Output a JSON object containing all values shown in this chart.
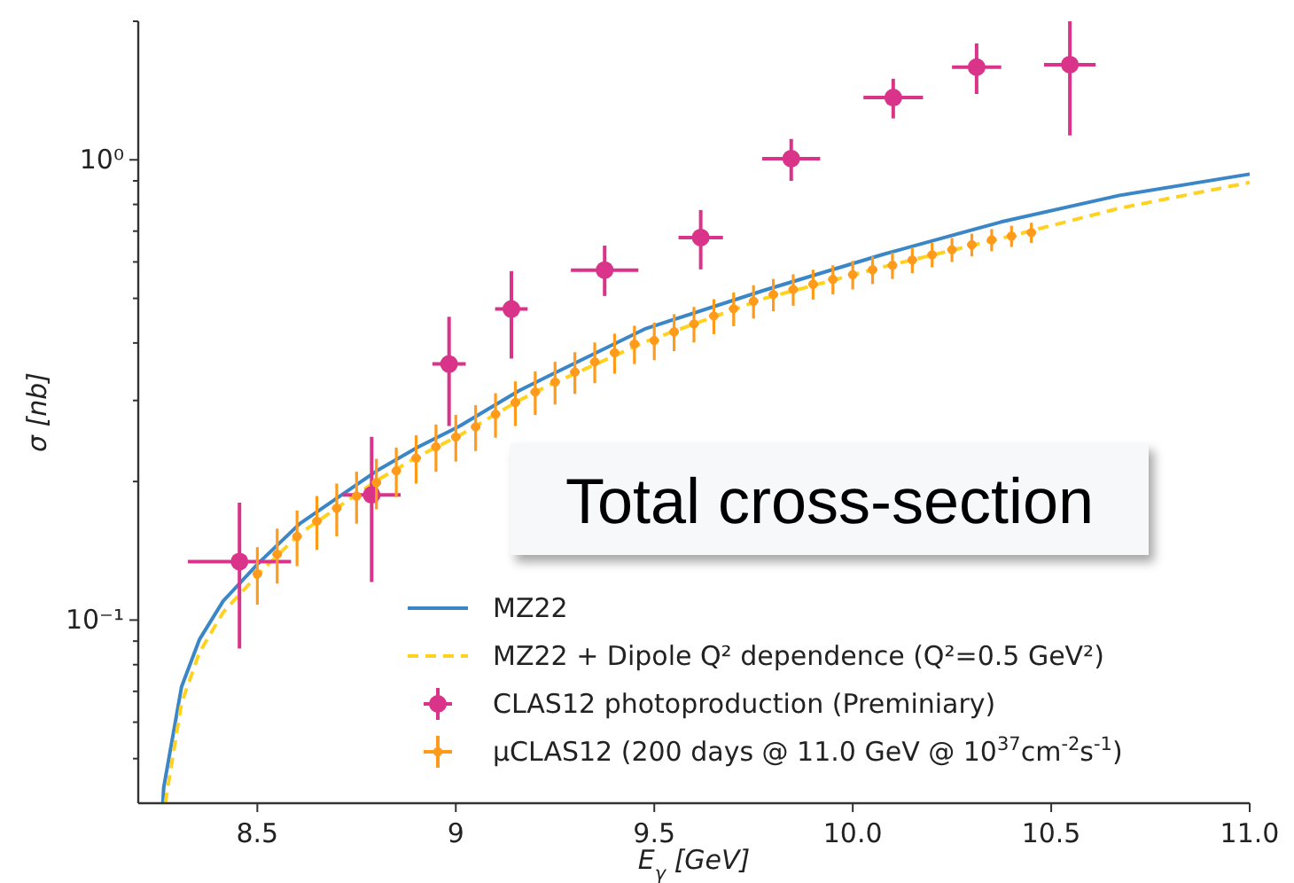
{
  "chart_data": {
    "type": "scatter",
    "xlabel": "E$_{γ}$ [GeV]",
    "ylabel": "σ [nb]",
    "log": "y",
    "xlim": [
      8.2,
      11.0
    ],
    "ylim": [
      0.04,
      2.0
    ],
    "xticks": [
      8.5,
      9.0,
      {
        "value": 9.5,
        "label": "9.5"
      },
      {
        "value": 10.0,
        "label": "10.0"
      },
      10.5,
      {
        "value": 11.0,
        "label": "11.0"
      }
    ],
    "yticks": [
      {
        "value": 0.05,
        "label": null
      },
      {
        "value": 0.06,
        "label": null
      },
      {
        "value": 0.07,
        "label": null
      },
      {
        "value": 0.08,
        "label": null
      },
      {
        "value": 0.09,
        "label": null
      },
      {
        "value": 0.1,
        "label": "10⁻¹"
      },
      {
        "value": 0.2,
        "label": null
      },
      {
        "value": 0.3,
        "label": null
      },
      {
        "value": 0.4,
        "label": null
      },
      {
        "value": 0.5,
        "label": null
      },
      {
        "value": 0.6,
        "label": null
      },
      {
        "value": 0.7,
        "label": null
      },
      {
        "value": 0.8,
        "label": null
      },
      {
        "value": 0.9,
        "label": null
      },
      {
        "value": 1,
        "label": "10⁰"
      },
      {
        "value": 2,
        "label": null
      }
    ],
    "grid": false,
    "legend": "bottom right",
    "annotations": [
      "Total cross-section"
    ],
    "series": [
      {
        "name": "MZ22",
        "type": "line",
        "color": "#3a86c6",
        "line_style": "solid",
        "x": [
          8.262,
          8.264,
          8.309,
          8.354,
          8.414,
          8.503,
          8.607,
          8.712,
          8.801,
          8.906,
          9.01,
          9.159,
          9.233,
          9.479,
          9.778,
          10.076,
          10.374,
          10.672,
          11.0
        ],
        "values": [
          0.04,
          0.0432,
          0.0716,
          0.0907,
          0.11,
          0.133,
          0.162,
          0.187,
          0.211,
          0.238,
          0.264,
          0.315,
          0.339,
          0.43,
          0.521,
          0.623,
          0.733,
          0.837,
          0.931
        ]
      },
      {
        "name": "MZ22 + Dipole Q² dependence (Q²=0.5 GeV²)",
        "type": "line",
        "color": "#ffd21f",
        "line_style": "dashed",
        "x": [
          8.268,
          8.309,
          8.354,
          8.414,
          8.503,
          8.607,
          8.712,
          8.801,
          8.906,
          9.01,
          9.159,
          9.233,
          9.479,
          9.778,
          10.076,
          10.374,
          10.672,
          11.0
        ],
        "values": [
          0.04,
          0.066,
          0.085,
          0.104,
          0.126,
          0.154,
          0.178,
          0.201,
          0.227,
          0.252,
          0.3,
          0.323,
          0.403,
          0.5,
          0.585,
          0.675,
          0.785,
          0.893
        ]
      },
      {
        "name": "CLAS12 photoproduction (Preminiary)",
        "color": "#d9338a",
        "marker": "circle",
        "x": [
          8.455,
          8.788,
          8.983,
          9.14,
          9.375,
          9.617,
          9.845,
          10.102,
          10.312,
          10.547
        ],
        "values": [
          0.134,
          0.187,
          0.36,
          0.474,
          0.576,
          0.678,
          1.006,
          1.365,
          1.59,
          1.61
        ],
        "errors": [
          [
            0.0867,
            0.18
          ],
          [
            0.121,
            0.25
          ],
          [
            0.264,
            0.456
          ],
          [
            0.37,
            0.573
          ],
          [
            0.506,
            0.651
          ],
          [
            0.578,
            0.778
          ],
          [
            0.9,
            1.11
          ],
          [
            1.23,
            1.5
          ],
          [
            1.39,
            1.79
          ],
          [
            1.13,
            2.0
          ]
        ],
        "xerrors": [
          0.13,
          0.073,
          0.042,
          0.041,
          0.085,
          0.056,
          0.073,
          0.075,
          0.062,
          0.065
        ]
      },
      {
        "name": "μCLAS12 (200 days @ 11.0 GeV @ 10$^{37}$cm$^{-2}$s$^{-1}$)",
        "color": "#ff9a1a",
        "marker": "circle",
        "x": [
          8.5,
          8.55,
          8.6,
          8.65,
          8.7,
          8.75,
          8.8,
          8.85,
          8.9,
          8.95,
          9.0,
          9.05,
          9.1,
          9.15,
          9.2,
          9.25,
          9.3,
          9.35,
          9.4,
          9.45,
          9.5,
          9.55,
          9.6,
          9.65,
          9.7,
          9.75,
          9.8,
          9.85,
          9.9,
          9.95,
          10.0,
          10.05,
          10.1,
          10.15,
          10.2,
          10.25,
          10.3,
          10.35,
          10.4,
          10.45
        ],
        "values": [
          0.126,
          0.139,
          0.152,
          0.164,
          0.175,
          0.186,
          0.199,
          0.211,
          0.225,
          0.238,
          0.25,
          0.263,
          0.28,
          0.297,
          0.313,
          0.329,
          0.346,
          0.364,
          0.381,
          0.398,
          0.405,
          0.423,
          0.44,
          0.458,
          0.475,
          0.493,
          0.51,
          0.523,
          0.537,
          0.55,
          0.563,
          0.577,
          0.59,
          0.606,
          0.622,
          0.638,
          0.654,
          0.67,
          0.683,
          0.695
        ],
        "errors": [
          0.018,
          0.019,
          0.021,
          0.022,
          0.023,
          0.024,
          0.025,
          0.026,
          0.027,
          0.028,
          0.029,
          0.03,
          0.031,
          0.033,
          0.034,
          0.035,
          0.036,
          0.037,
          0.038,
          0.038,
          0.038,
          0.039,
          0.039,
          0.04,
          0.04,
          0.041,
          0.041,
          0.041,
          0.04,
          0.04,
          0.04,
          0.04,
          0.039,
          0.039,
          0.038,
          0.038,
          0.037,
          0.037,
          0.036,
          0.035
        ],
        "xerrors": [
          0.012,
          0.012,
          0.012,
          0.012,
          0.012,
          0.012,
          0.012,
          0.012,
          0.012,
          0.012,
          0.012,
          0.012,
          0.012,
          0.012,
          0.012,
          0.012,
          0.012,
          0.012,
          0.012,
          0.012,
          0.012,
          0.012,
          0.012,
          0.012,
          0.012,
          0.012,
          0.012,
          0.012,
          0.012,
          0.012,
          0.012,
          0.012,
          0.012,
          0.012,
          0.012,
          0.012,
          0.012,
          0.012,
          0.012,
          0.012
        ]
      }
    ]
  }
}
